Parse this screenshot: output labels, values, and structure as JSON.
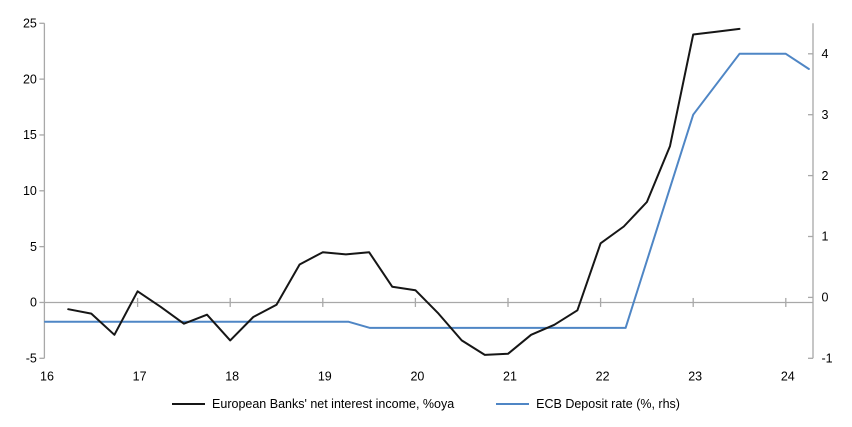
{
  "chart_data": {
    "type": "line",
    "title": "",
    "x_axis": {
      "ticks": [
        "16",
        "17",
        "18",
        "19",
        "20",
        "21",
        "22",
        "23",
        "24"
      ],
      "min": 16,
      "max": 24.3
    },
    "y_axis_left": {
      "ticks": [
        "-5",
        "0",
        "5",
        "10",
        "15",
        "20",
        "25"
      ],
      "min": -5,
      "max": 25
    },
    "y_axis_right": {
      "ticks": [
        "-1",
        "0",
        "1",
        "2",
        "3",
        "4"
      ],
      "min": -1,
      "max": 4.5
    },
    "grid": "single horizontal gridline at zero",
    "legend_position": "bottom-center",
    "series": [
      {
        "name": "European Banks' net interest income, %oya",
        "axis": "left",
        "color": "#161616",
        "points": [
          [
            16.25,
            -0.6
          ],
          [
            16.5,
            -1.0
          ],
          [
            16.75,
            -2.9
          ],
          [
            17.0,
            1.0
          ],
          [
            17.25,
            -0.4
          ],
          [
            17.5,
            -1.9
          ],
          [
            17.75,
            -1.1
          ],
          [
            18.0,
            -3.4
          ],
          [
            18.25,
            -1.3
          ],
          [
            18.5,
            -0.2
          ],
          [
            18.75,
            3.4
          ],
          [
            19.0,
            4.5
          ],
          [
            19.25,
            4.3
          ],
          [
            19.5,
            4.5
          ],
          [
            19.75,
            1.4
          ],
          [
            20.0,
            1.1
          ],
          [
            20.25,
            -1.0
          ],
          [
            20.5,
            -3.4
          ],
          [
            20.75,
            -4.7
          ],
          [
            21.0,
            -4.6
          ],
          [
            21.25,
            -2.9
          ],
          [
            21.5,
            -2.0
          ],
          [
            21.75,
            -0.7
          ],
          [
            22.0,
            5.3
          ],
          [
            22.25,
            6.8
          ],
          [
            22.5,
            9.0
          ],
          [
            22.75,
            14.0
          ],
          [
            23.0,
            24.0
          ],
          [
            23.25,
            24.25
          ],
          [
            23.5,
            24.5
          ]
        ]
      },
      {
        "name": "ECB Deposit rate (%, rhs)",
        "axis": "right",
        "color": "#4f86c5",
        "points": [
          [
            16.0,
            -0.4
          ],
          [
            19.28,
            -0.4
          ],
          [
            19.51,
            -0.5
          ],
          [
            22.27,
            -0.5
          ],
          [
            23.0,
            3.0
          ],
          [
            23.5,
            4.0
          ],
          [
            24.0,
            4.0
          ],
          [
            24.25,
            3.75
          ]
        ]
      }
    ]
  },
  "colors": {
    "axis": "#a8a8a8",
    "tick_label": "#000000",
    "background": "#ffffff"
  }
}
